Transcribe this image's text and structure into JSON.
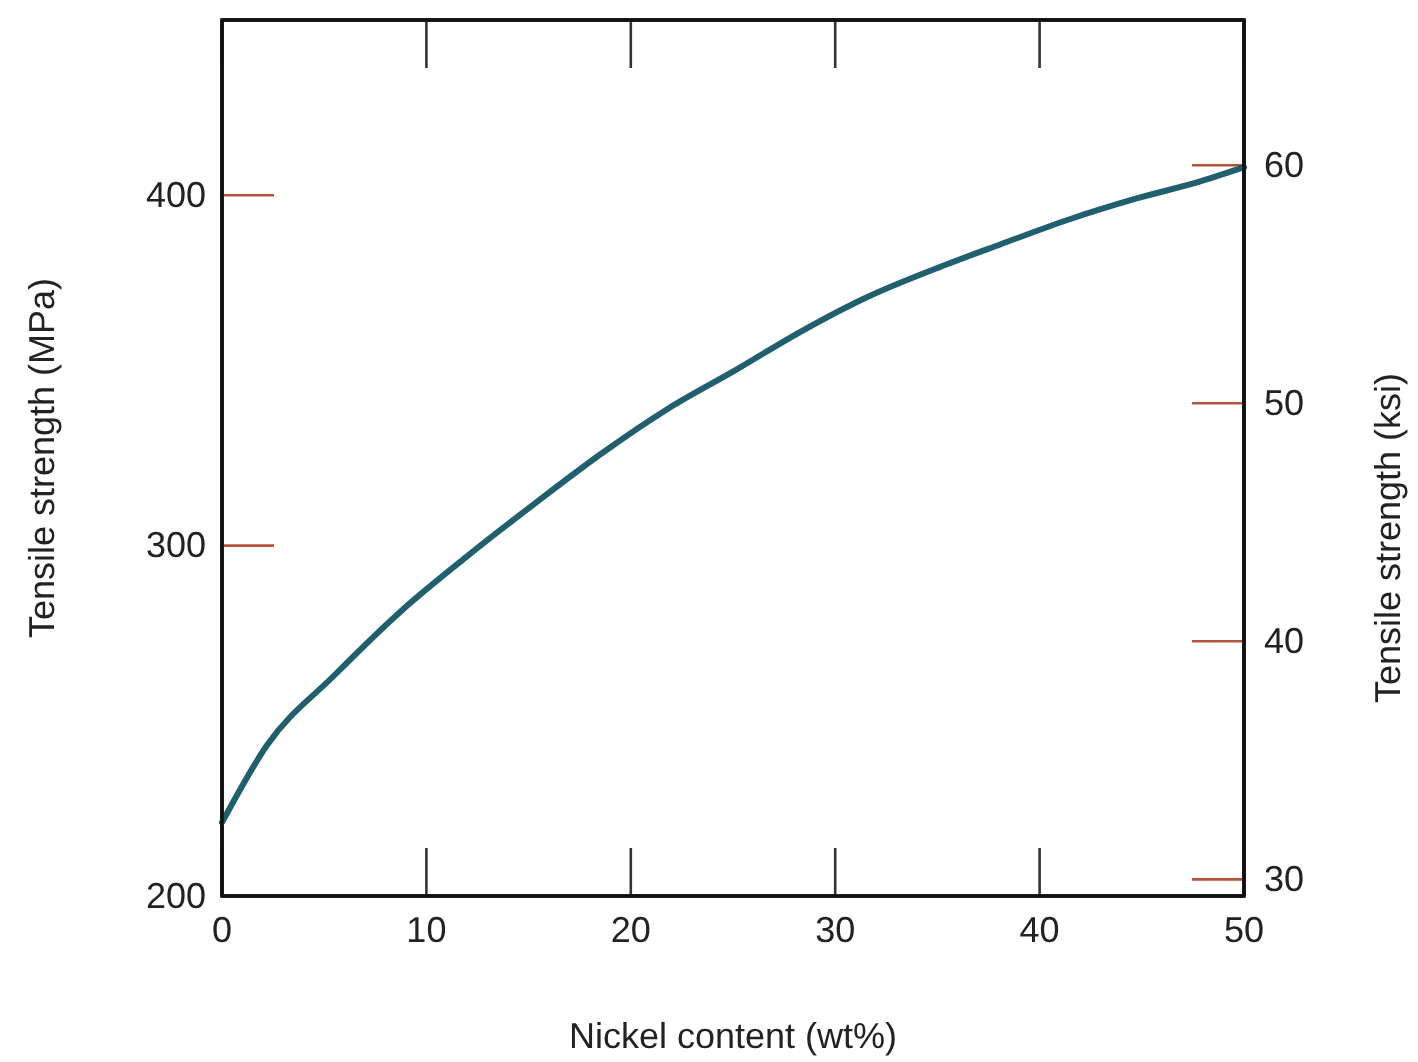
{
  "chart_data": {
    "type": "line",
    "xlabel": "Nickel content (wt%)",
    "ylabel": "Tensile strength (MPa)",
    "y2label": "Tensile strength (ksi)",
    "xlim": [
      0,
      50
    ],
    "xticks": [
      0,
      10,
      20,
      30,
      40,
      50
    ],
    "ylim": [
      200,
      450
    ],
    "yticks": [
      200,
      300,
      400
    ],
    "y2lim": [
      29.3,
      66.1
    ],
    "y2ticks": [
      30,
      40,
      50,
      60
    ],
    "marker": "none",
    "line_style": "solid",
    "series": [
      {
        "color": "#1f5f6e",
        "x": [
          0,
          2.2,
          5.5,
          8.7,
          12,
          15.3,
          18.5,
          21.8,
          25.1,
          28.3,
          31.6,
          34.9,
          38.1,
          41.4,
          44.7,
          47.9,
          50
        ],
        "values": [
          221,
          243,
          263,
          281,
          297,
          312,
          326,
          339,
          350,
          361,
          371,
          379,
          386,
          393,
          399,
          404,
          408
        ]
      }
    ]
  }
}
